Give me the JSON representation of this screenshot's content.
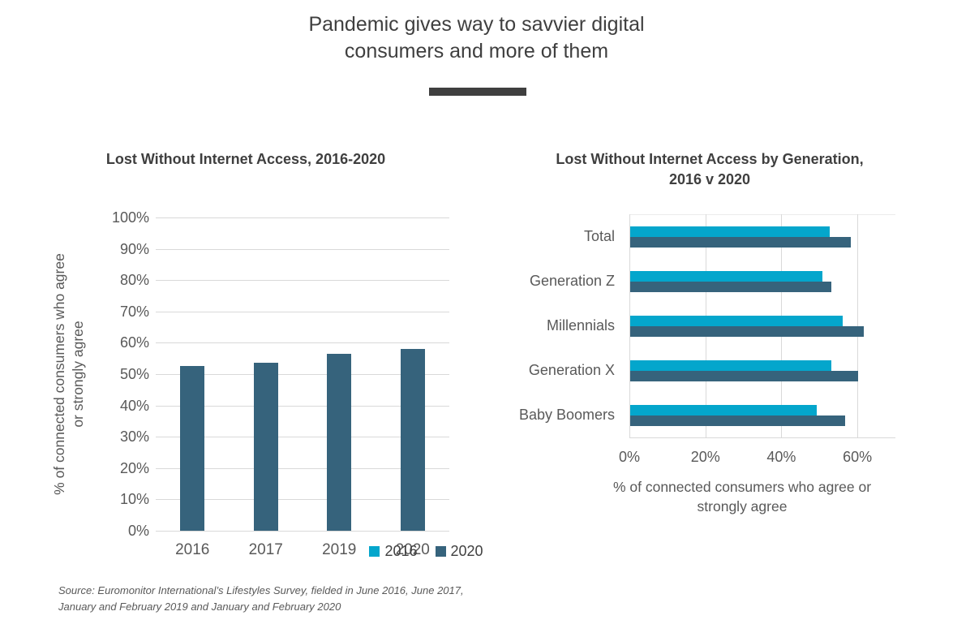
{
  "page": {
    "title": "Pandemic gives way to savvier digital consumers and more of them",
    "source_note": "Source: Euromonitor International’s Lifestyles Survey, fielded in June 2016, June 2017, January and February 2019 and January and February 2020"
  },
  "colors": {
    "dark_slate_blue": "#36637C",
    "cyan": "#04A6CC",
    "title_text": "#3f3f3f",
    "axis_text": "#595959",
    "gridline": "#d9d9d9",
    "plot_top_border": "#ececec"
  },
  "chart_data": [
    {
      "type": "bar",
      "title": "Lost Without Internet Access, 2016-2020",
      "categories": [
        "2016",
        "2017",
        "2019",
        "2020"
      ],
      "values": [
        52.5,
        53.5,
        56.5,
        58
      ],
      "ylabel": "% of connected consumers who agree or strongly agree",
      "xlabel": "",
      "ylim": [
        0,
        100
      ],
      "ytick_step": 10,
      "ytick_labels": [
        "0%",
        "10%",
        "20%",
        "30%",
        "40%",
        "50%",
        "60%",
        "70%",
        "80%",
        "90%",
        "100%"
      ],
      "grid": true,
      "bar_color": "#36637C"
    },
    {
      "type": "bar-horizontal",
      "title": "Lost Without Internet Access by Generation, 2016 v 2020",
      "categories": [
        "Total",
        "Generation Z",
        "Millennials",
        "Generation X",
        "Baby Boomers"
      ],
      "series": [
        {
          "name": "2016",
          "color": "#04A6CC",
          "values": [
            52.5,
            50.5,
            56,
            53,
            49
          ]
        },
        {
          "name": "2020",
          "color": "#36637C",
          "values": [
            58,
            53,
            61.5,
            60,
            56.5
          ]
        }
      ],
      "xlabel": "% of connected consumers who agree or strongly agree",
      "xlim": [
        0,
        70
      ],
      "xticks": [
        0,
        20,
        40,
        60
      ],
      "xtick_labels": [
        "0%",
        "20%",
        "40%",
        "60%"
      ],
      "grid": true,
      "legend_position": "bottom"
    }
  ]
}
